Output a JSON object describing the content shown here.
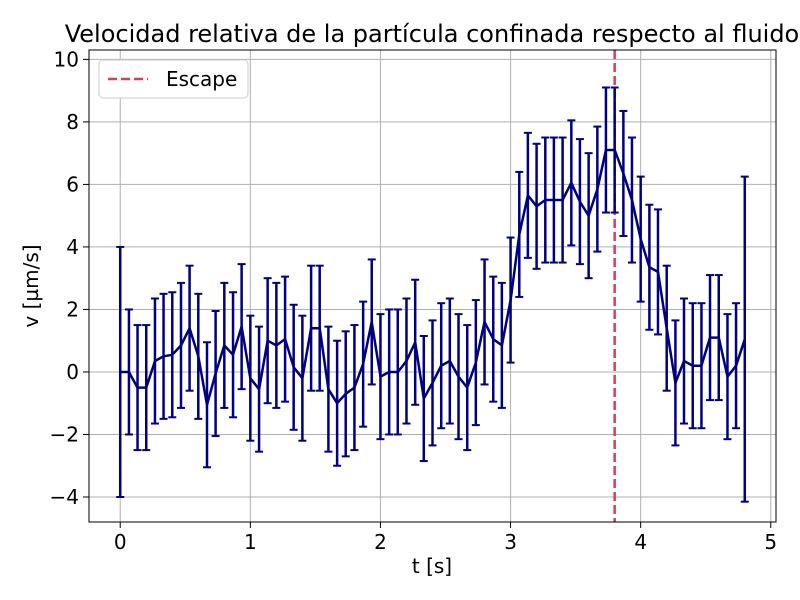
{
  "chart_data": {
    "type": "line",
    "title": "Velocidad relativa de la partícula confinada respecto al fluido",
    "xlabel": "t [s]",
    "ylabel": "v [µm/s]",
    "xlim": [
      -0.24,
      5.04
    ],
    "ylim": [
      -4.8,
      10.3
    ],
    "xticks": [
      0,
      1,
      2,
      3,
      4,
      5
    ],
    "yticks": [
      -4,
      -2,
      0,
      2,
      4,
      6,
      8,
      10
    ],
    "xtick_labels": [
      "0",
      "1",
      "2",
      "3",
      "4",
      "5"
    ],
    "ytick_labels": [
      "−4",
      "−2",
      "0",
      "2",
      "4",
      "6",
      "8",
      "10"
    ],
    "grid": true,
    "legend_position": "top-left",
    "series": [
      {
        "color": "#000080",
        "x": [
          0.0,
          0.067,
          0.133,
          0.2,
          0.267,
          0.333,
          0.4,
          0.467,
          0.533,
          0.6,
          0.667,
          0.733,
          0.8,
          0.867,
          0.933,
          1.0,
          1.067,
          1.133,
          1.2,
          1.267,
          1.333,
          1.4,
          1.467,
          1.533,
          1.6,
          1.667,
          1.733,
          1.8,
          1.867,
          1.933,
          2.0,
          2.067,
          2.133,
          2.2,
          2.267,
          2.333,
          2.4,
          2.467,
          2.533,
          2.6,
          2.667,
          2.733,
          2.8,
          2.867,
          2.933,
          3.0,
          3.067,
          3.133,
          3.2,
          3.267,
          3.333,
          3.4,
          3.467,
          3.533,
          3.6,
          3.667,
          3.733,
          3.8,
          3.867,
          3.933,
          4.0,
          4.067,
          4.133,
          4.2,
          4.267,
          4.333,
          4.4,
          4.467,
          4.533,
          4.6,
          4.667,
          4.733,
          4.8
        ],
        "y": [
          0.0,
          0.0,
          -0.5,
          -0.5,
          0.35,
          0.5,
          0.55,
          0.85,
          1.4,
          0.5,
          -1.05,
          -0.05,
          0.85,
          0.55,
          1.45,
          -0.2,
          -0.55,
          1.0,
          0.85,
          1.05,
          0.15,
          -0.2,
          1.4,
          1.4,
          -0.55,
          -1.0,
          -0.7,
          -0.5,
          0.25,
          1.6,
          -0.15,
          0.0,
          0.0,
          0.35,
          0.95,
          -0.85,
          -0.35,
          0.2,
          0.35,
          -0.15,
          -0.5,
          0.3,
          1.6,
          1.05,
          0.85,
          2.3,
          4.4,
          5.65,
          5.3,
          5.5,
          5.5,
          5.5,
          6.05,
          5.45,
          5.0,
          5.85,
          7.1,
          7.1,
          6.35,
          5.5,
          4.25,
          3.35,
          3.2,
          1.4,
          -0.35,
          0.35,
          0.2,
          0.2,
          1.1,
          1.1,
          -0.15,
          0.2,
          1.05
        ],
        "err": [
          4.0,
          2.0,
          2.0,
          2.0,
          2.0,
          2.0,
          2.0,
          2.0,
          2.0,
          2.0,
          2.0,
          2.0,
          2.0,
          2.0,
          2.0,
          2.0,
          2.0,
          2.0,
          2.0,
          2.0,
          2.0,
          2.0,
          2.0,
          2.0,
          2.0,
          2.0,
          2.0,
          2.0,
          2.0,
          2.0,
          2.0,
          2.0,
          2.0,
          2.0,
          2.0,
          2.0,
          2.0,
          2.0,
          2.0,
          2.0,
          2.0,
          2.0,
          2.0,
          2.0,
          2.0,
          2.0,
          2.0,
          2.0,
          2.0,
          2.0,
          2.0,
          2.0,
          2.0,
          2.0,
          2.0,
          2.0,
          2.0,
          2.0,
          2.0,
          2.0,
          2.0,
          2.0,
          2.0,
          2.0,
          2.0,
          2.0,
          2.0,
          2.0,
          2.0,
          2.0,
          2.0,
          2.0,
          5.2
        ]
      }
    ],
    "vline": {
      "x": 3.8,
      "label": "Escape",
      "color": "#dc3c5a"
    },
    "colors": {
      "grid": "#b0b0b0",
      "axes": "#000000"
    }
  }
}
